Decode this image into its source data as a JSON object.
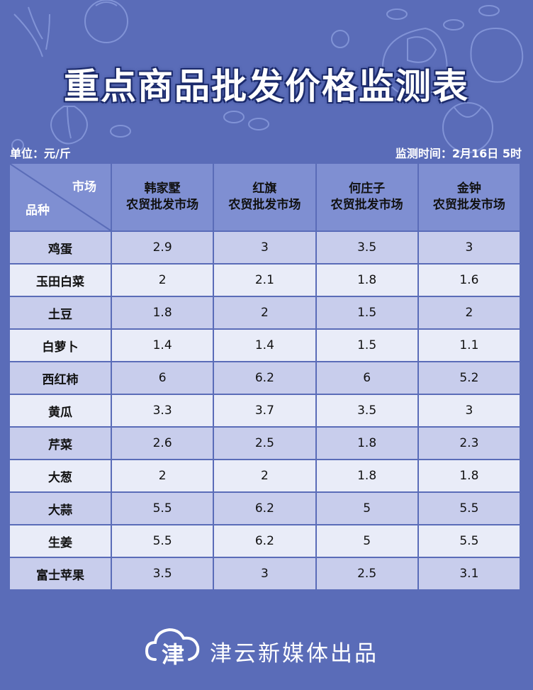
{
  "header": {
    "title": "重点商品批发价格监测表",
    "unit": "单位：元/斤",
    "monitor_time": "监测时间：2月16日  5时"
  },
  "table": {
    "corner_market": "市场",
    "corner_variety": "品种",
    "markets": [
      {
        "name": "韩家墅",
        "type": "农贸批发市场"
      },
      {
        "name": "红旗",
        "type": "农贸批发市场"
      },
      {
        "name": "何庄子",
        "type": "农贸批发市场"
      },
      {
        "name": "金钟",
        "type": "农贸批发市场"
      }
    ],
    "rows": [
      {
        "item": "鸡蛋",
        "values": [
          "2.9",
          "3",
          "3.5",
          "3"
        ]
      },
      {
        "item": "玉田白菜",
        "values": [
          "2",
          "2.1",
          "1.8",
          "1.6"
        ]
      },
      {
        "item": "土豆",
        "values": [
          "1.8",
          "2",
          "1.5",
          "2"
        ]
      },
      {
        "item": "白萝卜",
        "values": [
          "1.4",
          "1.4",
          "1.5",
          "1.1"
        ]
      },
      {
        "item": "西红柿",
        "values": [
          "6",
          "6.2",
          "6",
          "5.2"
        ]
      },
      {
        "item": "黄瓜",
        "values": [
          "3.3",
          "3.7",
          "3.5",
          "3"
        ]
      },
      {
        "item": "芹菜",
        "values": [
          "2.6",
          "2.5",
          "1.8",
          "2.3"
        ]
      },
      {
        "item": "大葱",
        "values": [
          "2",
          "2",
          "1.8",
          "1.8"
        ]
      },
      {
        "item": "大蒜",
        "values": [
          "5.5",
          "6.2",
          "5",
          "5.5"
        ]
      },
      {
        "item": "生姜",
        "values": [
          "5.5",
          "6.2",
          "5",
          "5.5"
        ]
      },
      {
        "item": "富士苹果",
        "values": [
          "3.5",
          "3",
          "2.5",
          "3.1"
        ]
      }
    ]
  },
  "footer": {
    "logo_char": "津",
    "text": "津云新媒体出品"
  },
  "colors": {
    "background": "#5a6cb8",
    "header_row": "#7f8fd2",
    "row_odd": "#c8cdec",
    "row_even": "#e9ecf8"
  }
}
